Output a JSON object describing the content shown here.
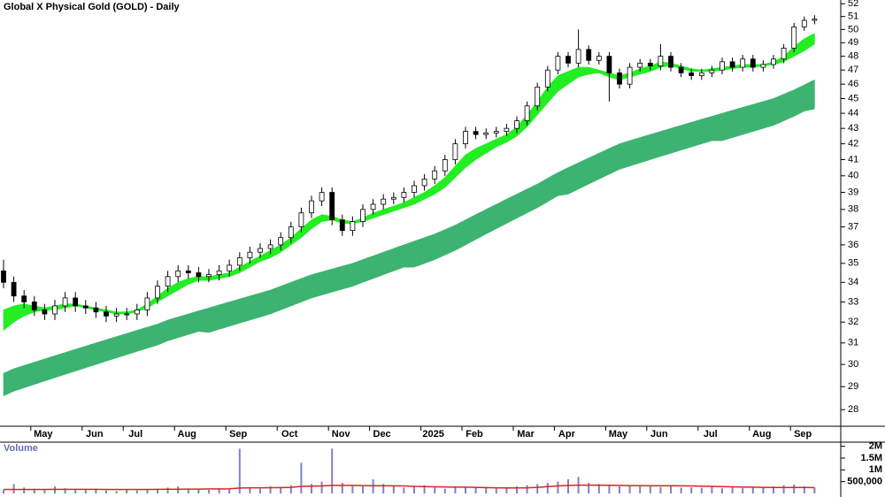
{
  "chart_data": {
    "type": "candlestick",
    "title": "Global X Physical Gold (GOLD) - Daily",
    "categories": [
      null,
      null,
      null,
      "May",
      null,
      null,
      null,
      null,
      "Jun",
      null,
      null,
      null,
      "Jul",
      null,
      null,
      null,
      null,
      "Aug",
      null,
      null,
      null,
      null,
      "Sep",
      null,
      null,
      null,
      null,
      "Oct",
      null,
      null,
      null,
      null,
      "Nov",
      null,
      null,
      null,
      "Dec",
      null,
      null,
      null,
      null,
      "2025",
      null,
      null,
      null,
      "Feb",
      null,
      null,
      null,
      null,
      "Mar",
      null,
      null,
      null,
      "Apr",
      null,
      null,
      null,
      null,
      "May",
      null,
      null,
      null,
      "Jun",
      null,
      null,
      null,
      null,
      "Jul",
      null,
      null,
      null,
      null,
      "Aug",
      null,
      null,
      null,
      "Sep",
      null,
      null
    ],
    "open": [
      34.6,
      34.0,
      33.3,
      33.0,
      32.6,
      32.4,
      32.8,
      33.2,
      32.8,
      32.7,
      32.5,
      32.3,
      32.4,
      32.4,
      32.6,
      33.2,
      33.8,
      34.3,
      34.6,
      34.5,
      34.3,
      34.4,
      34.6,
      34.9,
      35.3,
      35.6,
      35.8,
      36.0,
      36.4,
      37.0,
      37.8,
      38.5,
      39.0,
      37.4,
      36.8,
      37.3,
      38.0,
      38.3,
      38.6,
      38.7,
      39.0,
      39.4,
      39.8,
      40.3,
      41.0,
      42.0,
      42.8,
      42.6,
      42.7,
      42.8,
      43.0,
      43.5,
      44.5,
      45.8,
      47.0,
      48.0,
      47.5,
      48.5,
      47.7,
      48.0,
      46.8,
      46.0,
      47.2,
      47.5,
      47.3,
      48.0,
      47.2,
      46.8,
      46.6,
      46.8,
      47.0,
      47.6,
      47.2,
      47.8,
      47.2,
      47.4,
      47.8,
      48.6,
      50.2,
      50.7
    ],
    "high": [
      35.2,
      34.3,
      33.6,
      33.3,
      32.9,
      33.1,
      33.5,
      33.5,
      33.1,
      33.0,
      32.8,
      32.7,
      32.7,
      32.9,
      33.5,
      34.1,
      34.6,
      34.9,
      34.9,
      34.8,
      34.7,
      34.9,
      35.2,
      35.6,
      35.9,
      36.1,
      36.3,
      36.7,
      37.3,
      38.1,
      38.8,
      39.3,
      39.3,
      37.7,
      37.6,
      38.3,
      38.6,
      38.9,
      39.0,
      39.3,
      39.7,
      40.1,
      40.6,
      41.3,
      42.3,
      43.1,
      43.1,
      43.0,
      43.1,
      43.3,
      43.8,
      44.8,
      46.1,
      47.3,
      48.3,
      48.3,
      50.0,
      48.8,
      48.3,
      48.3,
      47.1,
      47.5,
      47.8,
      47.8,
      48.9,
      48.3,
      47.5,
      47.1,
      47.1,
      47.3,
      47.9,
      47.9,
      48.1,
      48.1,
      47.7,
      48.1,
      48.9,
      50.5,
      51.0,
      51.1
    ],
    "low": [
      33.7,
      33.0,
      32.7,
      32.3,
      32.1,
      32.1,
      32.5,
      32.5,
      32.4,
      32.2,
      32.0,
      32.0,
      32.1,
      32.1,
      32.3,
      32.9,
      33.5,
      34.0,
      34.2,
      34.0,
      34.0,
      34.1,
      34.3,
      34.6,
      35.0,
      35.3,
      35.5,
      35.7,
      36.1,
      36.7,
      37.5,
      38.2,
      37.1,
      36.5,
      36.5,
      37.0,
      37.7,
      38.0,
      38.3,
      38.4,
      38.7,
      39.1,
      39.5,
      40.0,
      40.7,
      41.7,
      42.3,
      42.3,
      42.4,
      42.5,
      42.7,
      43.2,
      44.2,
      45.5,
      46.7,
      47.2,
      47.2,
      47.4,
      47.4,
      44.8,
      45.7,
      45.7,
      46.9,
      47.0,
      47.0,
      46.9,
      46.5,
      46.3,
      46.3,
      46.5,
      46.7,
      46.9,
      46.9,
      46.9,
      46.9,
      47.1,
      47.5,
      48.3,
      49.9,
      50.4
    ],
    "close": [
      34.0,
      33.3,
      33.0,
      32.6,
      32.4,
      32.8,
      33.2,
      32.8,
      32.7,
      32.5,
      32.3,
      32.4,
      32.4,
      32.6,
      33.2,
      33.8,
      34.3,
      34.6,
      34.5,
      34.3,
      34.4,
      34.6,
      34.9,
      35.3,
      35.6,
      35.8,
      36.0,
      36.4,
      37.0,
      37.8,
      38.5,
      39.0,
      37.4,
      36.8,
      37.3,
      38.0,
      38.3,
      38.6,
      38.7,
      39.0,
      39.4,
      39.8,
      40.3,
      41.0,
      42.0,
      42.8,
      42.6,
      42.7,
      42.8,
      43.0,
      43.5,
      44.5,
      45.8,
      47.0,
      48.0,
      47.5,
      48.5,
      47.7,
      48.0,
      46.8,
      46.0,
      47.2,
      47.5,
      47.3,
      48.0,
      47.2,
      46.8,
      46.6,
      46.8,
      47.0,
      47.6,
      47.2,
      47.8,
      47.2,
      47.4,
      47.8,
      48.6,
      50.2,
      50.7,
      50.8
    ],
    "short_band": {
      "color": "#22ee22",
      "upper": [
        32.6,
        32.8,
        32.9,
        32.8,
        32.7,
        32.8,
        32.9,
        32.9,
        32.8,
        32.7,
        32.6,
        32.5,
        32.5,
        32.6,
        32.9,
        33.3,
        33.7,
        34.0,
        34.2,
        34.3,
        34.3,
        34.4,
        34.5,
        34.8,
        35.1,
        35.4,
        35.7,
        36.0,
        36.4,
        36.9,
        37.4,
        37.7,
        37.6,
        37.4,
        37.3,
        37.5,
        37.8,
        38.0,
        38.2,
        38.4,
        38.7,
        39.0,
        39.4,
        39.9,
        40.6,
        41.3,
        41.7,
        42.0,
        42.3,
        42.6,
        43.1,
        43.9,
        44.8,
        45.8,
        46.6,
        46.9,
        47.2,
        47.2,
        47.0,
        46.8,
        46.6,
        46.8,
        47.1,
        47.3,
        47.6,
        47.5,
        47.3,
        47.1,
        47.0,
        47.1,
        47.2,
        47.3,
        47.4,
        47.4,
        47.4,
        47.6,
        48.0,
        48.7,
        49.3,
        49.7
      ],
      "lower": [
        31.6,
        32.0,
        32.3,
        32.5,
        32.6,
        32.6,
        32.7,
        32.8,
        32.7,
        32.6,
        32.5,
        32.4,
        32.4,
        32.5,
        32.7,
        33.0,
        33.3,
        33.6,
        33.9,
        34.1,
        34.1,
        34.2,
        34.3,
        34.5,
        34.8,
        35.1,
        35.3,
        35.6,
        36.0,
        36.4,
        36.9,
        37.3,
        37.4,
        37.2,
        37.2,
        37.3,
        37.5,
        37.7,
        37.9,
        38.1,
        38.3,
        38.6,
        38.9,
        39.3,
        39.9,
        40.5,
        41.0,
        41.4,
        41.8,
        42.1,
        42.5,
        43.1,
        43.9,
        44.7,
        45.5,
        46.0,
        46.5,
        46.7,
        46.8,
        46.5,
        46.3,
        46.5,
        46.7,
        46.9,
        47.2,
        47.3,
        47.1,
        46.9,
        46.9,
        46.9,
        47.0,
        47.1,
        47.2,
        47.2,
        47.3,
        47.4,
        47.6,
        48.0,
        48.4,
        48.9
      ]
    },
    "long_band": {
      "color": "#3cb371",
      "upper": [
        29.6,
        29.8,
        29.95,
        30.1,
        30.25,
        30.4,
        30.55,
        30.7,
        30.85,
        31.0,
        31.15,
        31.3,
        31.45,
        31.6,
        31.75,
        31.9,
        32.1,
        32.25,
        32.4,
        32.55,
        32.7,
        32.85,
        33.0,
        33.15,
        33.3,
        33.45,
        33.6,
        33.8,
        34.0,
        34.2,
        34.4,
        34.55,
        34.7,
        34.85,
        35.0,
        35.2,
        35.4,
        35.6,
        35.8,
        36.0,
        36.2,
        36.4,
        36.6,
        36.85,
        37.1,
        37.4,
        37.7,
        38.0,
        38.3,
        38.6,
        38.9,
        39.2,
        39.5,
        39.85,
        40.2,
        40.5,
        40.8,
        41.1,
        41.4,
        41.7,
        42.0,
        42.2,
        42.4,
        42.6,
        42.8,
        43.0,
        43.2,
        43.4,
        43.6,
        43.8,
        44.0,
        44.2,
        44.4,
        44.6,
        44.8,
        45.0,
        45.3,
        45.6,
        45.95,
        46.3
      ],
      "lower": [
        28.6,
        28.8,
        28.95,
        29.1,
        29.25,
        29.4,
        29.55,
        29.7,
        29.85,
        30.0,
        30.15,
        30.3,
        30.45,
        30.6,
        30.75,
        30.9,
        31.1,
        31.25,
        31.4,
        31.55,
        31.5,
        31.65,
        31.8,
        31.95,
        32.1,
        32.25,
        32.4,
        32.6,
        32.8,
        33.0,
        33.2,
        33.35,
        33.5,
        33.65,
        33.8,
        34.0,
        34.2,
        34.4,
        34.6,
        34.8,
        34.8,
        35.0,
        35.2,
        35.45,
        35.7,
        36.0,
        36.3,
        36.6,
        36.9,
        37.2,
        37.5,
        37.8,
        38.1,
        38.45,
        38.8,
        38.9,
        39.2,
        39.5,
        39.8,
        40.1,
        40.4,
        40.6,
        40.8,
        41.0,
        41.2,
        41.4,
        41.6,
        41.8,
        42.0,
        42.2,
        42.2,
        42.4,
        42.6,
        42.8,
        43.0,
        43.2,
        43.5,
        43.8,
        44.15,
        44.3
      ]
    },
    "log_scale": true,
    "ylim": [
      27.3,
      52.3
    ],
    "yticks": [
      28,
      29,
      30,
      31,
      32,
      33,
      34,
      35,
      36,
      37,
      38,
      39,
      40,
      41,
      42,
      43,
      44,
      45,
      46,
      47,
      48,
      49,
      50,
      51,
      52
    ],
    "volume": {
      "title": "Volume",
      "color": "#8080cc",
      "ma_color": "#dd2222",
      "values": [
        150000,
        400000,
        250000,
        200000,
        180000,
        300000,
        220000,
        150000,
        180000,
        200000,
        120000,
        100000,
        150000,
        130000,
        160000,
        200000,
        250000,
        300000,
        200000,
        180000,
        150000,
        170000,
        200000,
        1900000,
        250000,
        200000,
        300000,
        280000,
        350000,
        1300000,
        400000,
        500000,
        1900000,
        450000,
        350000,
        300000,
        600000,
        400000,
        300000,
        250000,
        280000,
        350000,
        250000,
        200000,
        300000,
        280000,
        260000,
        240000,
        220000,
        250000,
        300000,
        350000,
        400000,
        450000,
        500000,
        600000,
        700000,
        450000,
        400000,
        350000,
        300000,
        350000,
        300000,
        320000,
        280000,
        300000,
        250000,
        260000,
        240000,
        280000,
        220000,
        260000,
        230000,
        250000,
        280000,
        300000,
        350000,
        380000,
        300000,
        250000
      ],
      "ma": [
        170000,
        170000,
        170000,
        170000,
        170000,
        175000,
        175000,
        175000,
        175000,
        175000,
        170000,
        170000,
        170000,
        170000,
        170000,
        175000,
        180000,
        180000,
        185000,
        185000,
        190000,
        190000,
        195000,
        230000,
        240000,
        240000,
        245000,
        250000,
        260000,
        300000,
        310000,
        320000,
        340000,
        340000,
        340000,
        335000,
        330000,
        330000,
        325000,
        320000,
        300000,
        290000,
        280000,
        275000,
        270000,
        265000,
        260000,
        250000,
        240000,
        235000,
        235000,
        240000,
        260000,
        290000,
        320000,
        340000,
        350000,
        350000,
        350000,
        345000,
        340000,
        335000,
        335000,
        330000,
        330000,
        330000,
        325000,
        320000,
        310000,
        300000,
        290000,
        280000,
        270000,
        265000,
        260000,
        255000,
        255000,
        255000,
        255000,
        250000
      ],
      "ylim": [
        0,
        2100000
      ],
      "yticks": [
        {
          "value": 500000,
          "label": "500,000"
        },
        {
          "value": 1000000,
          "label": "1M"
        },
        {
          "value": 1500000,
          "label": "1.5M"
        },
        {
          "value": 2000000,
          "label": "2M"
        }
      ]
    }
  }
}
